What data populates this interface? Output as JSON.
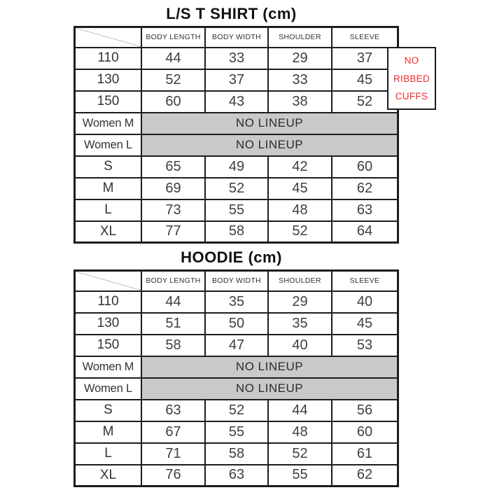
{
  "page": {
    "background": "#ffffff"
  },
  "colors": {
    "grid": "#1d1d1d",
    "gray_fill": "#c9c9c9",
    "note_red": "#f42b2b",
    "value_text": "#3f3f3f",
    "title_text": "#111111"
  },
  "note": {
    "lines": [
      "NO",
      "RIBBED",
      "CUFFS"
    ],
    "color": "#f42b2b"
  },
  "tables": [
    {
      "title": "L/S T SHIRT (cm)",
      "columns": [
        "BODY LENGTH",
        "BODY WIDTH",
        "SHOULDER",
        "SLEEVE"
      ],
      "rows": [
        {
          "label": "110",
          "values": [
            "44",
            "33",
            "29",
            "37"
          ]
        },
        {
          "label": "130",
          "values": [
            "52",
            "37",
            "33",
            "45"
          ]
        },
        {
          "label": "150",
          "values": [
            "60",
            "43",
            "38",
            "52"
          ]
        },
        {
          "label": "Women M",
          "merged": "NO LINEUP"
        },
        {
          "label": "Women L",
          "merged": "NO LINEUP"
        },
        {
          "label": "S",
          "values": [
            "65",
            "49",
            "42",
            "60"
          ]
        },
        {
          "label": "M",
          "values": [
            "69",
            "52",
            "45",
            "62"
          ]
        },
        {
          "label": "L",
          "values": [
            "73",
            "55",
            "48",
            "63"
          ]
        },
        {
          "label": "XL",
          "values": [
            "77",
            "58",
            "52",
            "64"
          ]
        }
      ]
    },
    {
      "title": "HOODIE (cm)",
      "columns": [
        "BODY LENGTH",
        "BODY WIDTH",
        "SHOULDER",
        "SLEEVE"
      ],
      "rows": [
        {
          "label": "110",
          "values": [
            "44",
            "35",
            "29",
            "40"
          ]
        },
        {
          "label": "130",
          "values": [
            "51",
            "50",
            "35",
            "45"
          ]
        },
        {
          "label": "150",
          "values": [
            "58",
            "47",
            "40",
            "53"
          ]
        },
        {
          "label": "Women M",
          "merged": "NO LINEUP"
        },
        {
          "label": "Women L",
          "merged": "NO LINEUP"
        },
        {
          "label": "S",
          "values": [
            "63",
            "52",
            "44",
            "56"
          ]
        },
        {
          "label": "M",
          "values": [
            "67",
            "55",
            "48",
            "60"
          ]
        },
        {
          "label": "L",
          "values": [
            "71",
            "58",
            "52",
            "61"
          ]
        },
        {
          "label": "XL",
          "values": [
            "76",
            "63",
            "55",
            "62"
          ]
        }
      ]
    }
  ],
  "chart_data": [
    {
      "type": "table",
      "title": "L/S T SHIRT (cm)",
      "columns": [
        "",
        "BODY LENGTH",
        "BODY WIDTH",
        "SHOULDER",
        "SLEEVE"
      ],
      "rows": [
        [
          "110",
          "44",
          "33",
          "29",
          "37"
        ],
        [
          "130",
          "52",
          "37",
          "33",
          "45"
        ],
        [
          "150",
          "60",
          "43",
          "38",
          "52"
        ],
        [
          "Women M",
          "NO LINEUP",
          "NO LINEUP",
          "NO LINEUP",
          "NO LINEUP"
        ],
        [
          "Women L",
          "NO LINEUP",
          "NO LINEUP",
          "NO LINEUP",
          "NO LINEUP"
        ],
        [
          "S",
          "65",
          "49",
          "42",
          "60"
        ],
        [
          "M",
          "69",
          "52",
          "45",
          "62"
        ],
        [
          "L",
          "73",
          "55",
          "48",
          "63"
        ],
        [
          "XL",
          "77",
          "58",
          "52",
          "64"
        ]
      ],
      "annotations": [
        "NO RIBBED CUFFS"
      ]
    },
    {
      "type": "table",
      "title": "HOODIE (cm)",
      "columns": [
        "",
        "BODY LENGTH",
        "BODY WIDTH",
        "SHOULDER",
        "SLEEVE"
      ],
      "rows": [
        [
          "110",
          "44",
          "35",
          "29",
          "40"
        ],
        [
          "130",
          "51",
          "50",
          "35",
          "45"
        ],
        [
          "150",
          "58",
          "47",
          "40",
          "53"
        ],
        [
          "Women M",
          "NO LINEUP",
          "NO LINEUP",
          "NO LINEUP",
          "NO LINEUP"
        ],
        [
          "Women L",
          "NO LINEUP",
          "NO LINEUP",
          "NO LINEUP",
          "NO LINEUP"
        ],
        [
          "S",
          "63",
          "52",
          "44",
          "56"
        ],
        [
          "M",
          "67",
          "55",
          "48",
          "60"
        ],
        [
          "L",
          "71",
          "58",
          "52",
          "61"
        ],
        [
          "XL",
          "76",
          "63",
          "55",
          "62"
        ]
      ],
      "annotations": []
    }
  ]
}
